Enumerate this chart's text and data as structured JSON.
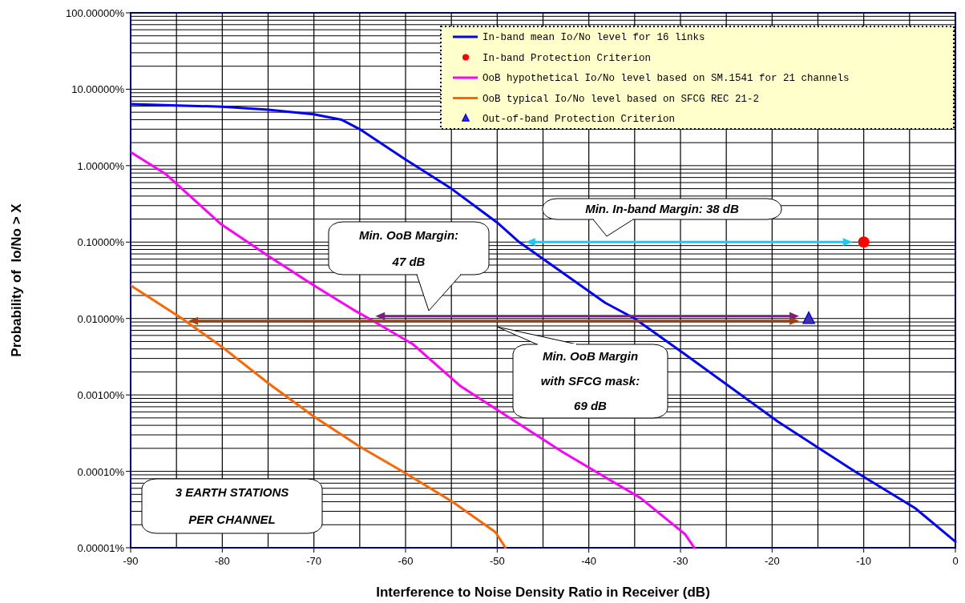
{
  "chart_data": {
    "type": "line",
    "xlabel": "Interference to Noise Density Ratio in Receiver (dB)",
    "ylabel": "Probability of  Io/No > X",
    "log": "y",
    "grid": true,
    "legend": "top right",
    "xlim": [
      -90,
      0
    ],
    "xticks": [
      -90,
      {
        "value": -85,
        "label": null
      },
      -80,
      {
        "value": -75,
        "label": null
      },
      -70,
      {
        "value": -65,
        "label": null
      },
      -60,
      {
        "value": -55,
        "label": null
      },
      -50,
      {
        "value": -45,
        "label": null
      },
      -40,
      {
        "value": -35,
        "label": null
      },
      -30,
      {
        "value": -25,
        "label": null
      },
      -20,
      {
        "value": -15,
        "label": null
      },
      -10,
      {
        "value": -5,
        "label": null
      },
      0
    ],
    "ylim": [
      1e-05,
      100
    ],
    "yticks": [
      {
        "value": 1e-05,
        "label": "0.00001%"
      },
      {
        "value": 0.0001,
        "label": "0.00010%"
      },
      {
        "value": 0.001,
        "label": "0.00100%"
      },
      {
        "value": 0.01,
        "label": "0.01000%"
      },
      {
        "value": 0.1,
        "label": "0.10000%"
      },
      {
        "value": 1,
        "label": "1.00000%"
      },
      {
        "value": 10,
        "label": "10.00000%"
      },
      {
        "value": 100,
        "label": "100.00000%"
      }
    ],
    "series": [
      {
        "name": "In-band mean Io/No level for 16 links",
        "color": "#0000ff",
        "x": [
          -90,
          -80,
          -75,
          -70,
          -67,
          -65,
          -60,
          -55,
          -50,
          -47.6,
          -38.2,
          -35,
          -29.5,
          -19.4,
          -11,
          -4.4,
          0
        ],
        "values": [
          6.4,
          5.9,
          5.4,
          4.7,
          4.0,
          3.0,
          1.2,
          0.5,
          0.18,
          0.1,
          0.016,
          0.01,
          0.0034,
          0.00045,
          0.0001,
          3.3e-05,
          1.2e-05
        ]
      },
      {
        "name": "In-band Protection Criterion",
        "type": "scatter",
        "marker": "circle",
        "color": "#ff0000",
        "x": [
          -10
        ],
        "values": [
          0.1
        ]
      },
      {
        "name": "OoB hypothetical Io/No level based on SM.1541 for 21 channels",
        "color": "#ff00ff",
        "x": [
          -90,
          -86.2,
          -80.1,
          -74.9,
          -70,
          -65.7,
          -64,
          -59.2,
          -54,
          -42.9,
          -34.4,
          -29.5,
          -28.5
        ],
        "values": [
          1.5,
          0.78,
          0.17,
          0.065,
          0.027,
          0.013,
          0.01,
          0.0046,
          0.0013,
          0.00018,
          4.5e-05,
          1.5e-05,
          1e-05
        ]
      },
      {
        "name": "OoB typical Io/No level based on SFCG REC 21-2",
        "color": "#ff6600",
        "x": [
          -90,
          -84.4,
          -80.1,
          -74.9,
          -70,
          -65,
          -60.1,
          -54.9,
          -50.2,
          -49.1
        ],
        "values": [
          0.027,
          0.01,
          0.0043,
          0.0014,
          0.00052,
          0.00021,
          9.6e-05,
          4e-05,
          1.6e-05,
          1e-05
        ]
      },
      {
        "name": "Out-of-band Protection Criterion",
        "type": "scatter",
        "marker": "triangle",
        "color": "#4030b0",
        "x": [
          -16
        ],
        "values": [
          0.01
        ]
      }
    ],
    "annotations": [
      "Min. In-band Margin: 38 dB",
      "Min. OoB Margin:\n47 dB",
      "Min. OoB Margin\nwith SFCG mask:\n69 dB",
      "3 EARTH STATIONS\nPER CHANNEL"
    ]
  }
}
